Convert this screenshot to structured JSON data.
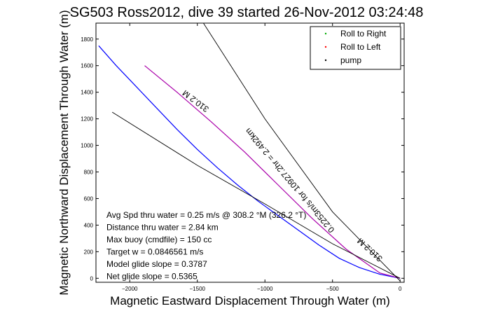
{
  "chart_data": {
    "type": "line",
    "title": "SG503 Ross2012, dive 39 started 26-Nov-2012 03:24:48",
    "xlabel": "Magnetic Eastward Displacement Through Water (m)",
    "ylabel": "Magnetic Northward Displacement Through Water (m)",
    "xlim": [
      -2250,
      30
    ],
    "ylim": [
      -30,
      1920
    ],
    "xticks": [
      -2000,
      -1500,
      -1000,
      -500,
      0
    ],
    "xtick_labels": [
      "−2000",
      "−1500",
      "−1000",
      "−500",
      "0"
    ],
    "yticks": [
      0,
      200,
      400,
      600,
      800,
      1000,
      1200,
      1400,
      1600,
      1800
    ],
    "ytick_labels": [
      "0",
      "200",
      "400",
      "600",
      "800",
      "1000",
      "1200",
      "1400",
      "1600",
      "1800"
    ],
    "grid": false,
    "legend_position": "top-right",
    "legend": [
      {
        "name": "Roll to Right",
        "color": "#00aa00"
      },
      {
        "name": "Roll to Left",
        "color": "#ff0000"
      },
      {
        "name": "pump",
        "color": "#000000"
      }
    ],
    "series": [
      {
        "kind": "track",
        "color": "#0000ff",
        "points": [
          [
            -2230,
            1750
          ],
          [
            -2100,
            1600
          ],
          [
            -1950,
            1440
          ],
          [
            -1800,
            1280
          ],
          [
            -1650,
            1120
          ],
          [
            -1500,
            970
          ],
          [
            -1350,
            830
          ],
          [
            -1200,
            700
          ],
          [
            -1050,
            580
          ],
          [
            -900,
            470
          ],
          [
            -750,
            360
          ],
          [
            -600,
            250
          ],
          [
            -450,
            150
          ],
          [
            -300,
            80
          ],
          [
            -150,
            30
          ],
          [
            0,
            0
          ]
        ]
      },
      {
        "kind": "track-left",
        "color": "#aa00aa",
        "points": [
          [
            -1890,
            1600
          ],
          [
            -1650,
            1400
          ],
          [
            -1400,
            1180
          ],
          [
            -1150,
            950
          ],
          [
            -900,
            700
          ],
          [
            -650,
            450
          ],
          [
            -400,
            220
          ],
          [
            -150,
            40
          ],
          [
            0,
            0
          ]
        ]
      },
      {
        "kind": "reference",
        "color": "#000000",
        "points": [
          [
            -1600,
            2150
          ],
          [
            -1000,
            1200
          ],
          [
            -500,
            500
          ],
          [
            0,
            -20
          ]
        ]
      },
      {
        "kind": "reference",
        "color": "#000000",
        "points": [
          [
            -2130,
            1250
          ],
          [
            -1500,
            850
          ],
          [
            -1000,
            560
          ],
          [
            -500,
            260
          ],
          [
            0,
            0
          ]
        ]
      }
    ],
    "rotated_annotations": [
      {
        "text": "310.2 M",
        "x": -1500,
        "y": 1350,
        "angle": 37
      },
      {
        "text": "0.2253m/s for 10927.2hr = 2.492km",
        "x": -800,
        "y": 750,
        "angle": 50
      },
      {
        "text": "310.2 M",
        "x": -210,
        "y": 230,
        "angle": 42
      }
    ],
    "notes": [
      "Avg Spd thru water = 0.25 m/s @ 308.2 °M (326.2 °T)",
      "Distance thru water = 2.84 km",
      "Max buoy (cmdfile) = 150 cc",
      "Target w = 0.0846561 m/s",
      "Model glide slope = 0.3787",
      "Net glide slope = 0.5365"
    ]
  }
}
